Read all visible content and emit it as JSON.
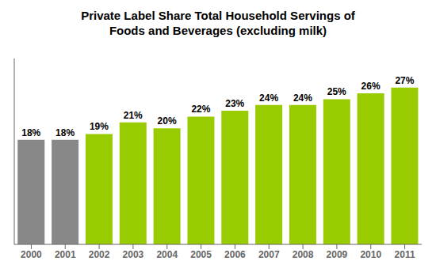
{
  "chart_data": {
    "type": "bar",
    "title": "Private Label Share Total Household Servings of\nFoods and Beverages (excluding milk)",
    "categories": [
      "2000",
      "2001",
      "2002",
      "2003",
      "2004",
      "2005",
      "2006",
      "2007",
      "2008",
      "2009",
      "2010",
      "2011"
    ],
    "values": [
      18,
      18,
      19,
      21,
      20,
      22,
      23,
      24,
      24,
      25,
      26,
      27
    ],
    "value_labels": [
      "18%",
      "18%",
      "19%",
      "21%",
      "20%",
      "22%",
      "23%",
      "24%",
      "24%",
      "25%",
      "26%",
      "27%"
    ],
    "colors": [
      "#888888",
      "#888888",
      "#99cc00",
      "#99cc00",
      "#99cc00",
      "#99cc00",
      "#99cc00",
      "#99cc00",
      "#99cc00",
      "#99cc00",
      "#99cc00",
      "#99cc00"
    ],
    "ylim": [
      0,
      32
    ],
    "data_labels": true,
    "tick_labels": "x",
    "grid": false
  }
}
